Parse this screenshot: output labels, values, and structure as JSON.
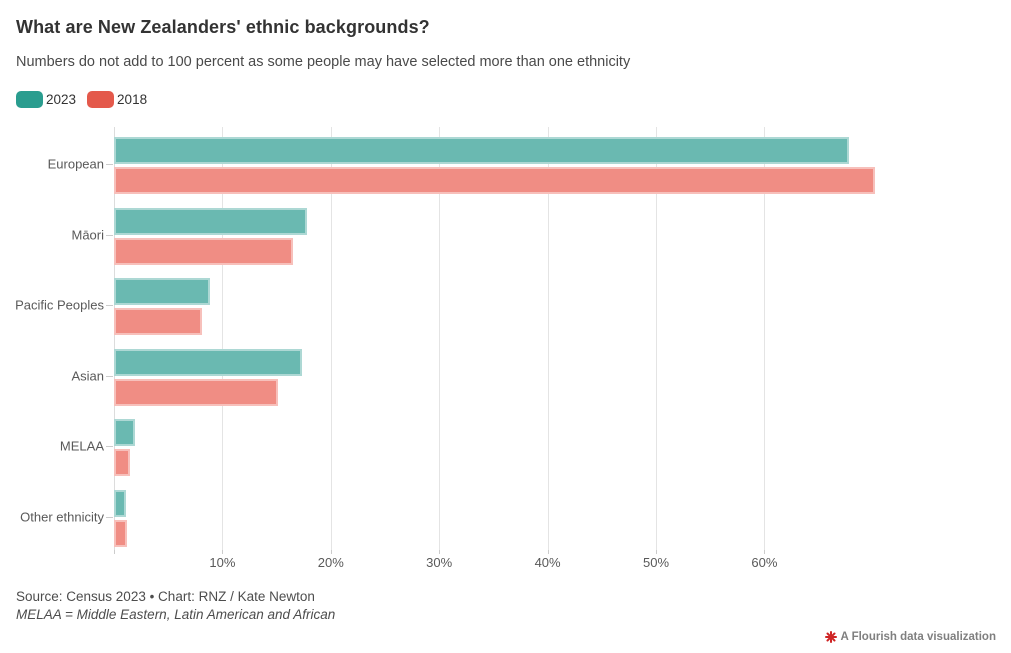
{
  "header": {
    "title": "What are New Zealanders' ethnic backgrounds?",
    "subtitle": "Numbers do not add to 100 percent as some people may have selected more than one ethnicity"
  },
  "chart_data": {
    "type": "bar",
    "orientation": "horizontal",
    "title": "What are New Zealanders' ethnic backgrounds?",
    "categories": [
      "European",
      "Māori",
      "Pacific Peoples",
      "Asian",
      "MELAA",
      "Other ethnicity"
    ],
    "series": [
      {
        "name": "2023",
        "values": [
          67.8,
          17.8,
          8.9,
          17.3,
          1.9,
          1.1
        ],
        "bar_color": "#6ab9b1",
        "legend_color": "#2a9d8f"
      },
      {
        "name": "2018",
        "values": [
          70.2,
          16.5,
          8.1,
          15.1,
          1.5,
          1.2
        ],
        "bar_color": "#f08d84",
        "legend_color": "#e4594b"
      }
    ],
    "unit": "percent",
    "x_axis": {
      "min": 0,
      "max": 82,
      "tick_values": [
        10,
        20,
        30,
        40,
        50,
        60
      ],
      "tick_labels": [
        "10%",
        "20%",
        "30%",
        "40%",
        "50%",
        "60%"
      ]
    },
    "grid": "vertical-light",
    "legend_position": "top-left"
  },
  "footer": {
    "source": "Source: Census 2023 • Chart: RNZ / Kate Newton",
    "note": "MELAA = Middle Eastern, Latin American and African"
  },
  "attribution": {
    "label": "A Flourish data visualization",
    "icon_color": "#cf2525"
  }
}
